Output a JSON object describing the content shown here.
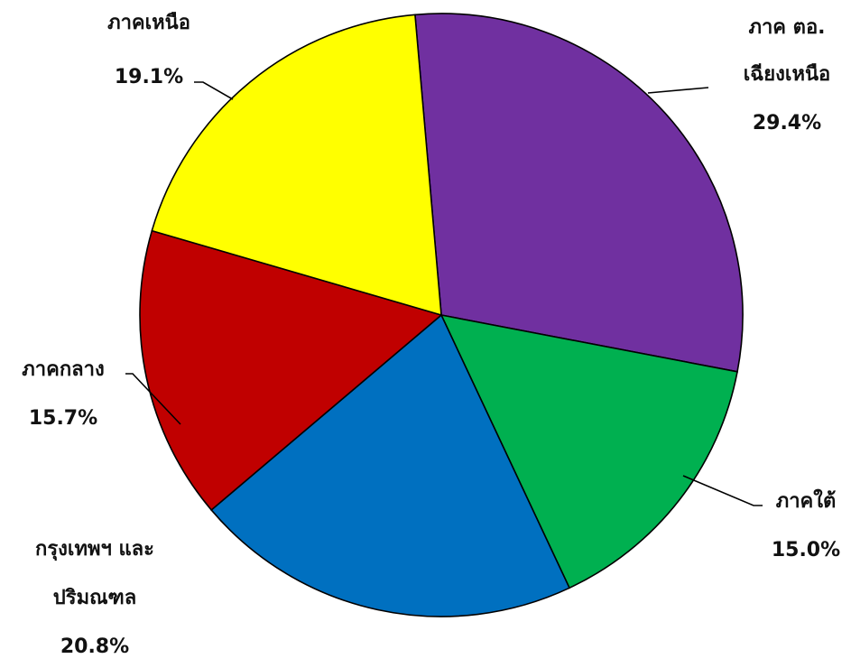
{
  "chart_data": {
    "type": "pie",
    "slices": [
      {
        "label_lines": [
          "ภาค ตอ.",
          "เฉียงเหนือ"
        ],
        "value_label": "29.4%",
        "value": 29.4,
        "color": "#7030A0"
      },
      {
        "label_lines": [
          "ภาคใต้"
        ],
        "value_label": "15.0%",
        "value": 15.0,
        "color": "#00B050"
      },
      {
        "label_lines": [
          "กรุงเทพฯ และ",
          "ปริมณฑล"
        ],
        "value_label": "20.8%",
        "value": 20.8,
        "color": "#0070C0"
      },
      {
        "label_lines": [
          "ภาคกลาง"
        ],
        "value_label": "15.7%",
        "value": 15.7,
        "color": "#C00000"
      },
      {
        "label_lines": [
          "ภาคเหนือ"
        ],
        "value_label": "19.1%",
        "value": 19.1,
        "color": "#FFFF00"
      }
    ],
    "start_angle_deg": -5,
    "legend": "none",
    "grid": false
  }
}
